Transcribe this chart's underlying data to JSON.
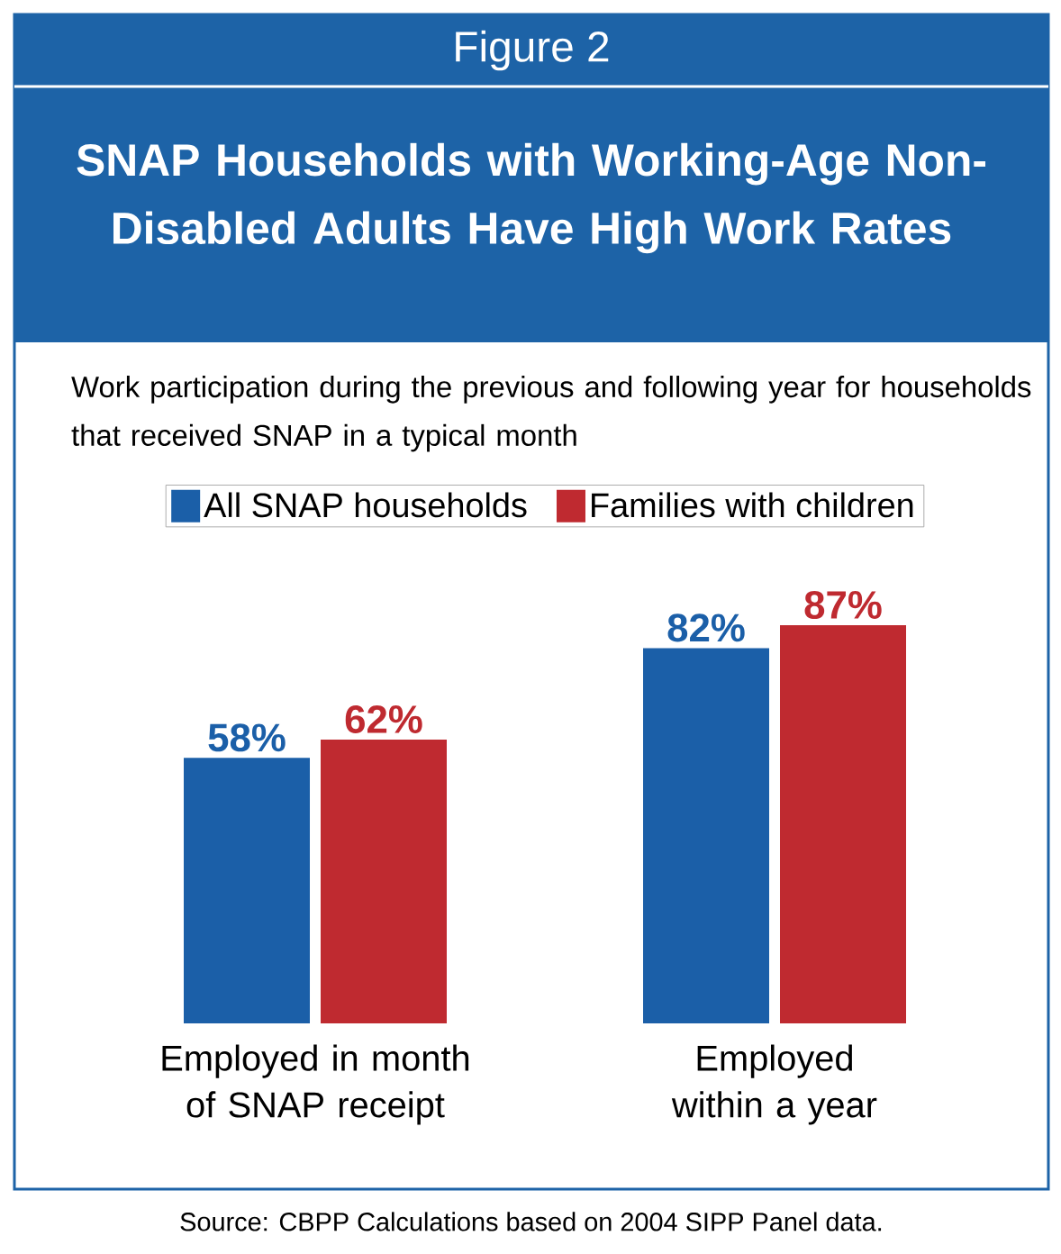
{
  "chart_data": {
    "type": "bar",
    "title": "SNAP Households with Working-Age Non-Disabled Adults Have High Work Rates",
    "subtitle": "Work participation during the previous and following year for households that received SNAP in a typical month",
    "categories": [
      "Employed in month of SNAP receipt",
      "Employed within a year"
    ],
    "series": [
      {
        "name": "All SNAP households",
        "color": "#1b5fa8",
        "values": [
          58,
          82
        ],
        "value_labels": [
          "58%",
          "82%"
        ]
      },
      {
        "name": "Families with children",
        "color": "#bf2a30",
        "values": [
          62,
          87
        ],
        "value_labels": [
          "62%",
          "87%"
        ]
      }
    ],
    "legend": "top",
    "annotations": [
      "Figure 2",
      "Source: CBPP Calculations based on 2004 SIPP Panel data."
    ]
  }
}
